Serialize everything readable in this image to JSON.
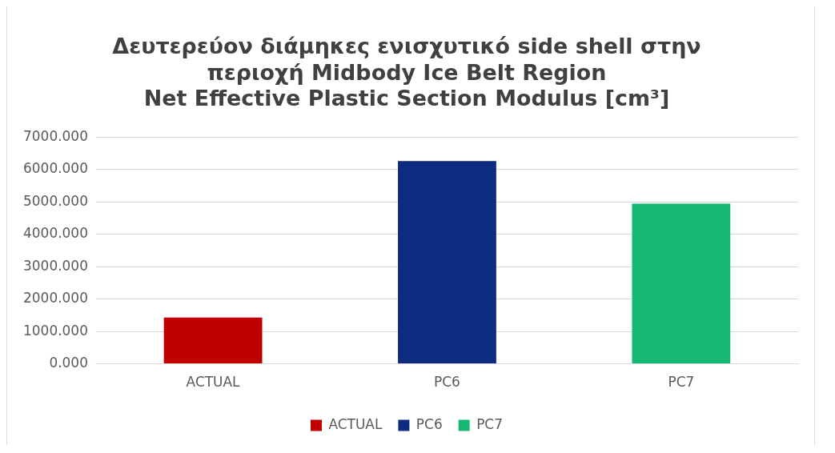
{
  "chart_data": {
    "type": "bar",
    "title": "Δευτερεύον διάμηκες ενισχυτικό side shell στην\nπεριοχή Midbody Ice Belt Region\nNet Effective Plastic Section Modulus [cm³]",
    "categories": [
      "ACTUAL",
      "PC6",
      "PC7"
    ],
    "series": [
      {
        "name": "ACTUAL",
        "color": "#c00000",
        "values": [
          1430,
          null,
          null
        ]
      },
      {
        "name": "PC6",
        "color": "#0d2b80",
        "values": [
          null,
          6260,
          null
        ]
      },
      {
        "name": "PC7",
        "color": "#14b872",
        "values": [
          null,
          null,
          4940
        ]
      }
    ],
    "ylim": [
      0,
      7000
    ],
    "yticks": [
      {
        "value": 0,
        "label": "0.000"
      },
      {
        "value": 1000,
        "label": "1000.000"
      },
      {
        "value": 2000,
        "label": "2000.000"
      },
      {
        "value": 3000,
        "label": "3000.000"
      },
      {
        "value": 4000,
        "label": "4000.000"
      },
      {
        "value": 5000,
        "label": "5000.000"
      },
      {
        "value": 6000,
        "label": "6000.000"
      },
      {
        "value": 7000,
        "label": "7000.000"
      }
    ],
    "grid": "y",
    "legend": "bottom"
  }
}
